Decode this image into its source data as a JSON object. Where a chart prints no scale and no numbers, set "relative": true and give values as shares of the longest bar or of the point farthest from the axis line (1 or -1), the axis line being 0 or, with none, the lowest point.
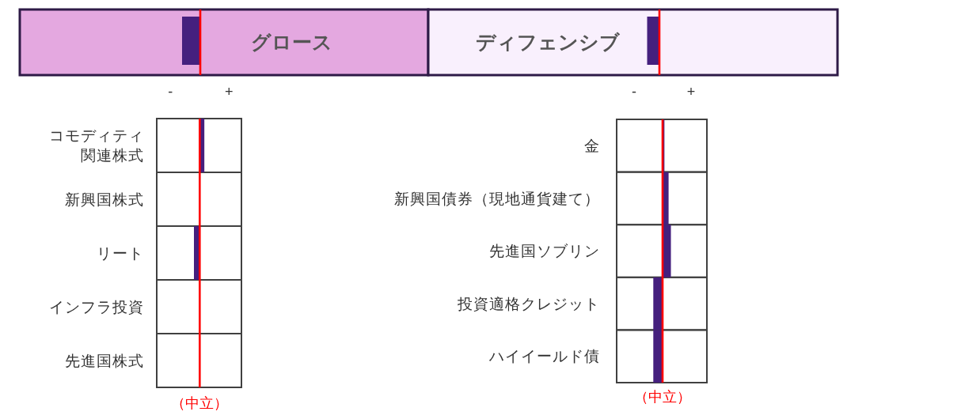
{
  "chart_data": [
    {
      "type": "bar",
      "orientation": "horizontal",
      "relative": true,
      "categories": [
        "グロース"
      ],
      "values": [
        -1
      ],
      "color": "#45207e",
      "bands": [
        {
          "axis": "y",
          "from": "グロース",
          "to": "グロース",
          "color": "#e4a8e0"
        }
      ]
    },
    {
      "type": "bar",
      "orientation": "horizontal",
      "relative": true,
      "categories": [
        "ディフェンシブ"
      ],
      "values": [
        -1
      ],
      "color": "#45207e",
      "bands": [
        {
          "axis": "y",
          "from": "ディフェンシブ",
          "to": "ディフェンシブ",
          "color": "#f9f0fd"
        }
      ]
    },
    {
      "type": "bar",
      "orientation": "horizontal",
      "relative": true,
      "categories": [
        "コモディティ関連株式",
        "新興国株式",
        "リート",
        "インフラ投資",
        "先進国株式"
      ],
      "values": [
        0.8,
        0,
        -1,
        0,
        0
      ],
      "color": "#45207e",
      "annotations": [
        "-",
        "+"
      ],
      "ref_lines": [
        {
          "axis": "x",
          "value": 0,
          "label": "（中立）",
          "color": "#ff0000"
        }
      ]
    },
    {
      "type": "bar",
      "orientation": "horizontal",
      "relative": true,
      "categories": [
        "金",
        "新興国債券（現地通貨建て）",
        "先進国ソブリン",
        "投資適格クレジット",
        "ハイイールド債"
      ],
      "values": [
        0.2,
        0.65,
        0.9,
        -1,
        -1
      ],
      "color": "#45207e",
      "annotations": [
        "-",
        "+"
      ],
      "ref_lines": [
        {
          "axis": "x",
          "value": 0,
          "label": "（中立）",
          "color": "#ff0000"
        }
      ]
    }
  ]
}
